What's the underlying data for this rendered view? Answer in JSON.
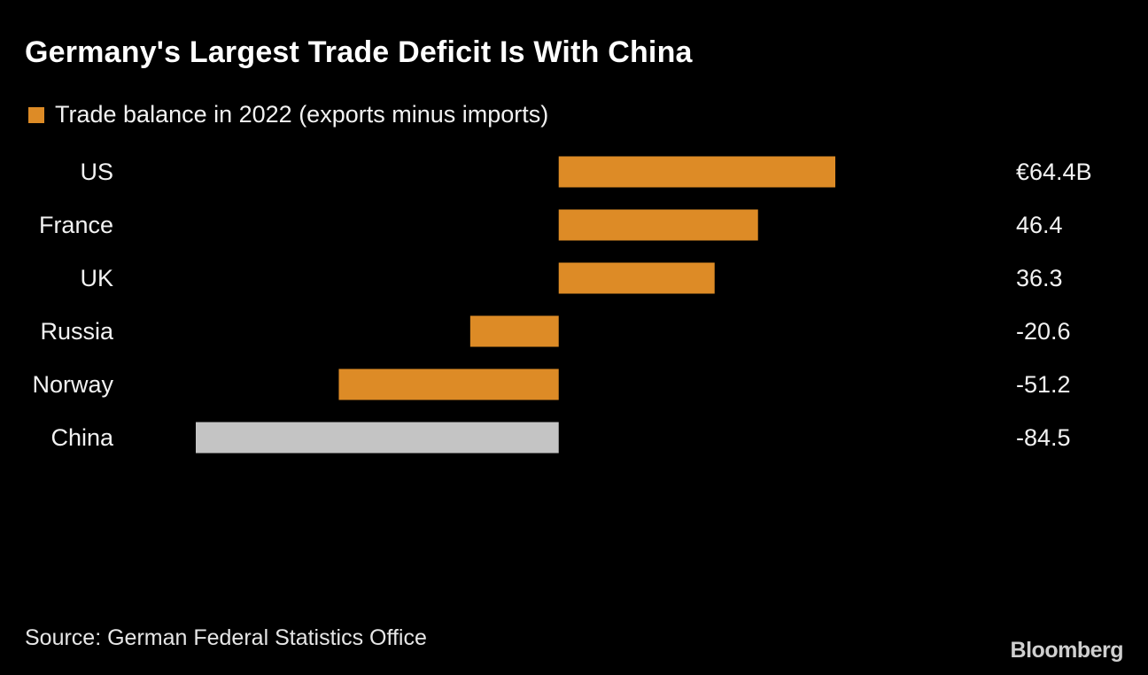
{
  "colors": {
    "background": "#000000",
    "positive_bar": "#dd8b26",
    "highlight_bar": "#c4c4c4",
    "text": "#ffffff"
  },
  "chart_data": {
    "type": "bar",
    "orientation": "horizontal",
    "title": "Germany's Largest Trade Deficit Is With China",
    "legend": [
      "Trade balance in 2022 (exports minus imports)"
    ],
    "categories": [
      "US",
      "France",
      "UK",
      "Russia",
      "Norway",
      "China"
    ],
    "series": [
      {
        "name": "Trade balance in 2022 (exports minus imports)",
        "values": [
          64.4,
          46.4,
          36.3,
          -20.6,
          -51.2,
          -84.5
        ]
      }
    ],
    "value_labels": [
      "€64.4B",
      "46.4",
      "36.3",
      "-20.6",
      "-51.2",
      "-84.5"
    ],
    "highlighted_category": "China",
    "unit": "€ billion",
    "xlim": [
      -84.5,
      64.4
    ],
    "source": "Source: German Federal Statistics Office",
    "logo_text": "Bloomberg"
  }
}
